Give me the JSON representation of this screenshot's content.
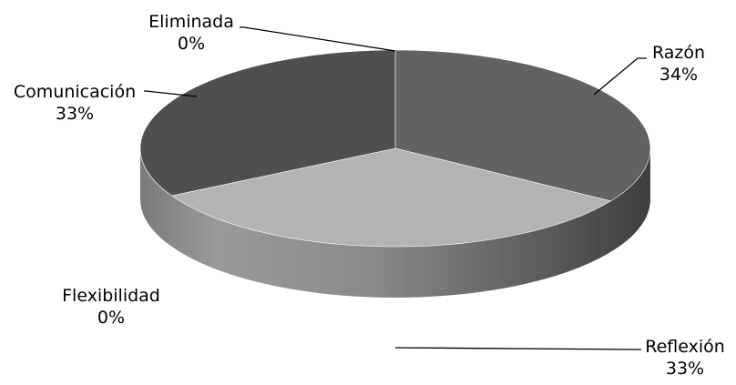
{
  "chart_data": {
    "type": "pie",
    "variant": "3d",
    "title": "",
    "slices": [
      {
        "label": "Razón",
        "value": 34,
        "value_label": "34%",
        "color": "#626262"
      },
      {
        "label": "Reflexión",
        "value": 33,
        "value_label": "33%",
        "color": "#b3b3b3"
      },
      {
        "label": "Flexibilidad",
        "value": 0,
        "value_label": "0%",
        "color": "#8a8a8a"
      },
      {
        "label": "Comunicación",
        "value": 33,
        "value_label": "33%",
        "color": "#4f4f4f"
      },
      {
        "label": "Eliminada",
        "value": 0,
        "value_label": "0%",
        "color": "#303030"
      }
    ],
    "legend": "none",
    "data_labels": "outside with leader lines"
  }
}
